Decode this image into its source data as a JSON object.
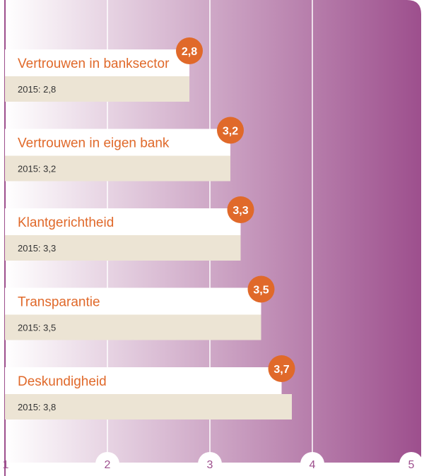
{
  "colors": {
    "background_start": "#ffffff",
    "background_end": "#9d4f8d",
    "label_text": "#e0692a",
    "badge": "#e0692a",
    "badge_text": "#ffffff",
    "prev_bar": "#ece4d4",
    "prev_text": "#333333",
    "current_bar": "#ffffff",
    "axis_line": "#9d4f8d",
    "tick_text": "#9d4f8d"
  },
  "chart_data": {
    "type": "bar",
    "orientation": "horizontal",
    "xlim": [
      1,
      5
    ],
    "xticks": [
      "1",
      "2",
      "3",
      "4",
      "5"
    ],
    "grid": true,
    "categories": [
      "Vertrouwen in banksector",
      "Vertrouwen in eigen bank",
      "Klantgerichtheid",
      "Transparantie",
      "Deskundigheid"
    ],
    "values": [
      2.8,
      3.2,
      3.3,
      3.5,
      3.7
    ],
    "value_labels": [
      "2,8",
      "3,2",
      "3,3",
      "3,5",
      "3,7"
    ],
    "previous_values": [
      2.8,
      3.2,
      3.3,
      3.5,
      3.8
    ],
    "previous_labels": [
      "2015: 2,8",
      "2015: 3,2",
      "2015: 3,3",
      "2015: 3,5",
      "2015: 3,8"
    ]
  }
}
